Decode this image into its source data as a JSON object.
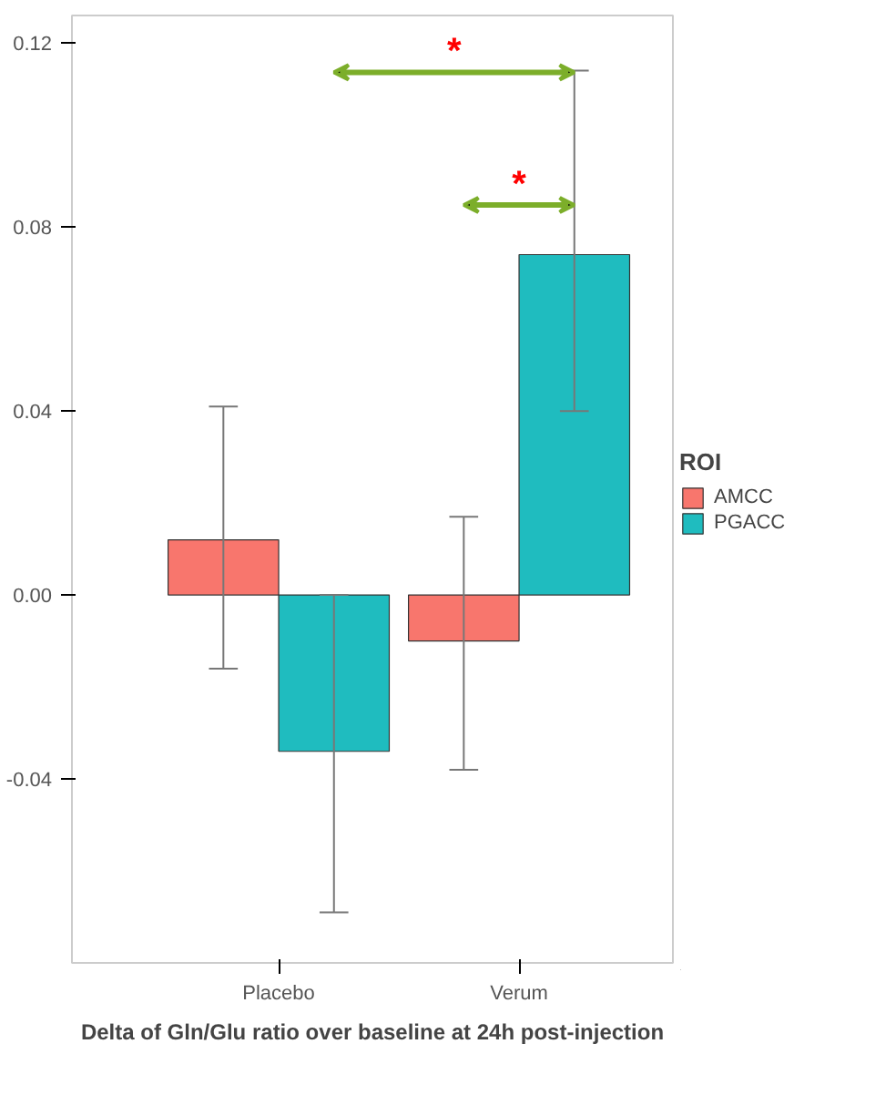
{
  "chart_data": {
    "type": "bar",
    "xlabel": "Delta of Gln/Glu ratio over baseline at 24h post-injection",
    "legend_title": "ROI",
    "categories": [
      "Placebo",
      "Verum"
    ],
    "series": [
      {
        "name": "AMCC",
        "color": "#f8766d",
        "values": [
          0.012,
          -0.01
        ],
        "errors": [
          [
            -0.016,
            0.041
          ],
          [
            -0.038,
            0.017
          ]
        ]
      },
      {
        "name": "PGACC",
        "color": "#1fbcbf",
        "values": [
          -0.034,
          0.074
        ],
        "errors": [
          [
            -0.069,
            0.0
          ],
          [
            0.04,
            0.114
          ]
        ]
      }
    ],
    "ylim": [
      -0.08,
      0.126
    ],
    "yticks": [
      {
        "value": -0.04,
        "label": "-0.04"
      },
      {
        "value": 0,
        "label": "0.00"
      },
      {
        "value": 0.04,
        "label": "0.04"
      },
      {
        "value": 0.08,
        "label": "0.08"
      },
      {
        "value": 0.12,
        "label": "0.12"
      }
    ],
    "annotations": [
      "*",
      "*"
    ],
    "grid": false,
    "legend": "right"
  }
}
